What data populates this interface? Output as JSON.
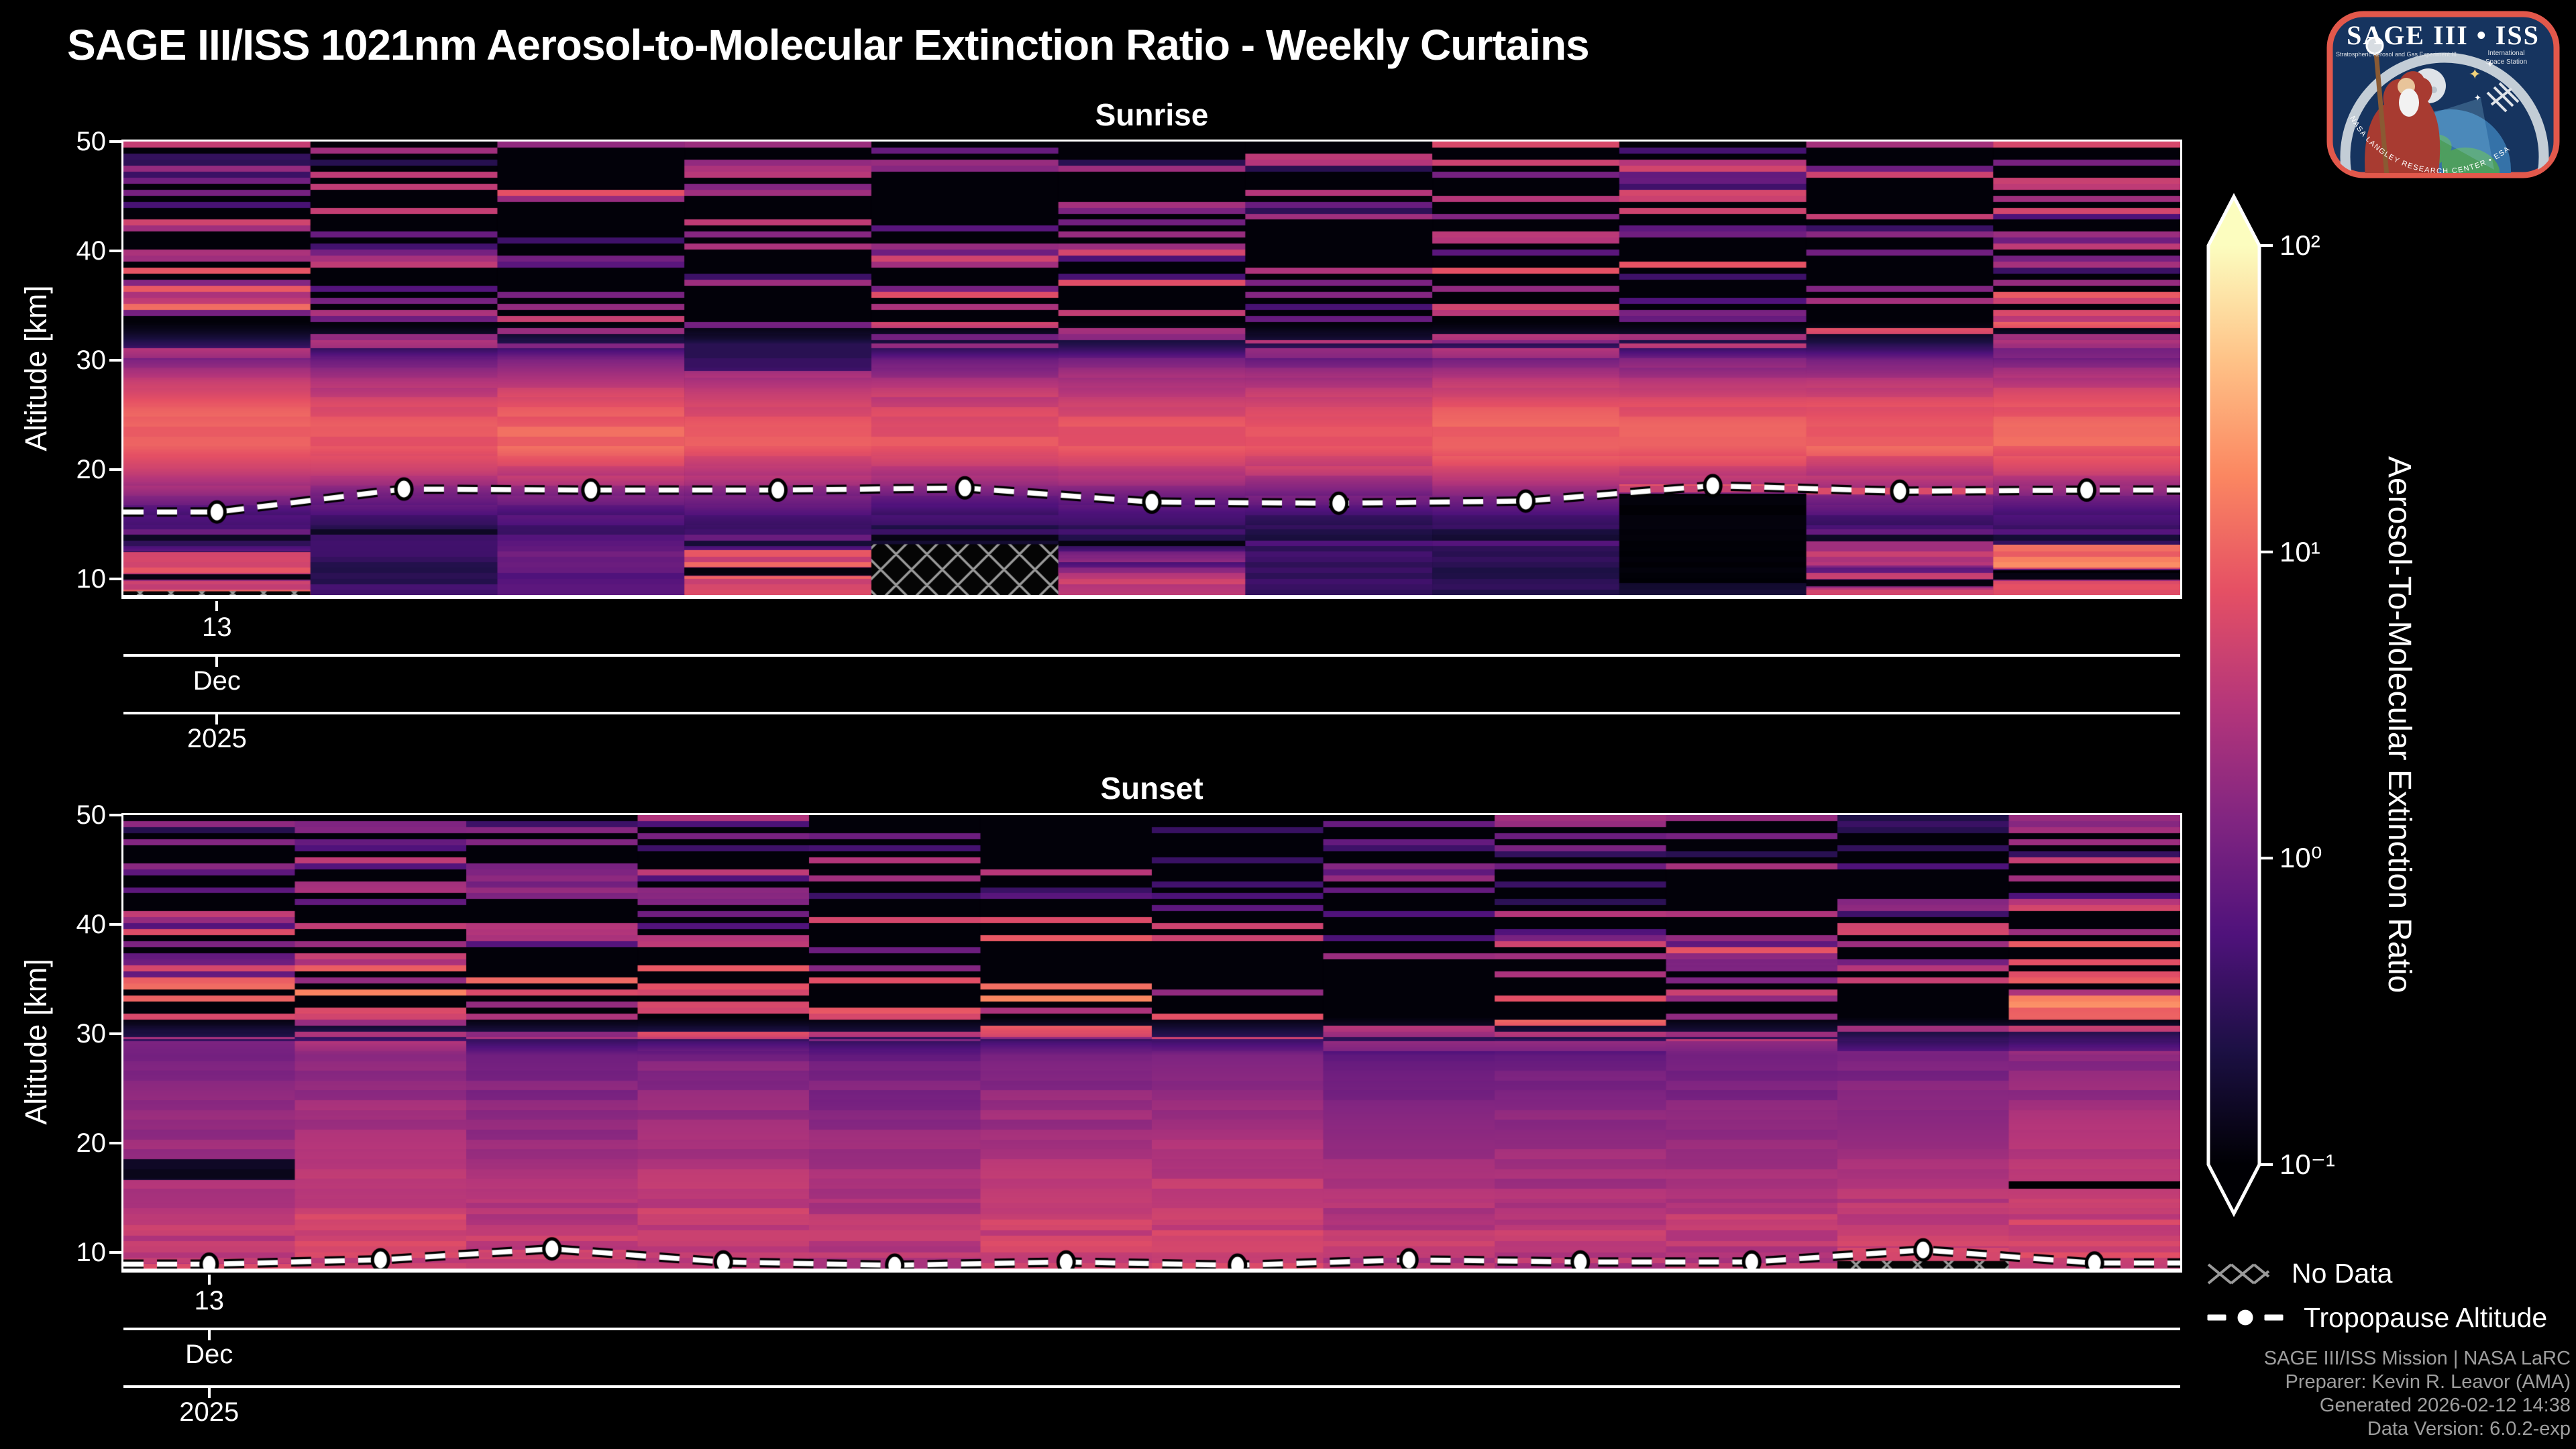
{
  "title": "SAGE III/ISS 1021nm Aerosol-to-Molecular Extinction Ratio - Weekly Curtains",
  "logo": {
    "title": "SAGE III • ISS",
    "experiment": "Stratospheric Aerosol and Gas Experiment III",
    "station_line1": "International",
    "station_line2": "Space Station",
    "border_text": "NASA LANGLEY RESEARCH CENTER • ESA"
  },
  "colorbar": {
    "label": "Aerosol-To-Molecular Extinction Ratio",
    "ticks": [
      "10²",
      "10¹",
      "10⁰",
      "10⁻¹"
    ],
    "tick_values": [
      100,
      10,
      1,
      0.1
    ],
    "scale": "log",
    "colormap": "magma"
  },
  "legend": [
    {
      "icon": "no-data-hatch",
      "label": "No Data"
    },
    {
      "icon": "tropopause-line",
      "label": "Tropopause Altitude"
    }
  ],
  "attribution": [
    "SAGE III/ISS Mission | NASA LaRC",
    "Preparer: Kevin R. Leavor (AMA)",
    "Generated 2026-02-12 14:38",
    "Data Version: 6.0.2-exp"
  ],
  "colors": {
    "background": "#000000",
    "text": "#ffffff",
    "attribution_text": "#9e9e9e",
    "hatch": "#9a9a9a",
    "tropopause_line": "#ffffff",
    "tropopause_outline": "#000000",
    "logo_border": "#e2584b",
    "logo_fill": "#16345f"
  },
  "chart_data": [
    {
      "type": "heatmap",
      "event": "sunrise",
      "title": "Sunrise",
      "ylabel": "Altitude [km]",
      "yticks": [
        50,
        40,
        30,
        20,
        10
      ],
      "ylim": [
        8.5,
        50
      ],
      "xtick": {
        "day": "13",
        "month": "Dec",
        "year": "2025"
      },
      "columns": 11,
      "scale": {
        "type": "log",
        "vmin": 0.1,
        "vmax": 100
      },
      "profile_log10": [
        [
          50,
          -0.9
        ],
        [
          42,
          -0.86
        ],
        [
          36,
          -0.72
        ],
        [
          33,
          -0.5
        ],
        [
          31,
          -0.12
        ],
        [
          29.5,
          0.18
        ],
        [
          28,
          0.48
        ],
        [
          26,
          0.78
        ],
        [
          24,
          0.93
        ],
        [
          22,
          0.95
        ],
        [
          20.5,
          0.72
        ],
        [
          19,
          0.42
        ],
        [
          17.5,
          0.05
        ],
        [
          16,
          -0.28
        ],
        [
          14.5,
          -0.45
        ],
        [
          13,
          -0.5
        ],
        [
          12,
          -0.15
        ],
        [
          11,
          0.2
        ],
        [
          10,
          0.35
        ],
        [
          9,
          0.45
        ],
        [
          8.5,
          0.5
        ]
      ],
      "features": [
        {
          "col": 1,
          "alt": [
            10.5,
            12.4
          ],
          "log10": 1.05,
          "noise": 0.8
        },
        {
          "col": 1,
          "alt": [
            9.9,
            10.4
          ],
          "log10": -0.95,
          "noise": 0.1
        },
        {
          "col": 1,
          "alt": [
            8.5,
            9.8
          ],
          "log10": 0.8,
          "noise": 0.5
        },
        {
          "col": 2,
          "alt": [
            8.5,
            13.5
          ],
          "log10": -0.45,
          "noise": 0.3
        },
        {
          "col": 3,
          "alt": [
            8.5,
            13.5
          ],
          "log10": -0.12,
          "noise": 0.3
        },
        {
          "col": 4,
          "alt": [
            29.0,
            31.5
          ],
          "log10": -0.45,
          "noise": 0.2
        },
        {
          "col": 4,
          "alt": [
            11.1,
            12.6
          ],
          "log10": 0.85,
          "noise": 0.5
        },
        {
          "col": 4,
          "alt": [
            10.3,
            11.0
          ],
          "log10": -0.95,
          "noise": 0.1
        },
        {
          "col": 4,
          "alt": [
            8.5,
            10.2
          ],
          "log10": 0.85,
          "noise": 0.5
        },
        {
          "col": 7,
          "alt": [
            8.5,
            13.0
          ],
          "log10": -0.4,
          "noise": 0.25
        },
        {
          "col": 8,
          "alt": [
            8.5,
            13.0
          ],
          "log10": -0.55,
          "noise": 0.25
        },
        {
          "col": 9,
          "alt": [
            17.9,
            18.6
          ],
          "log10": 0.8,
          "noise": 0.4
        },
        {
          "col": 9,
          "alt": [
            9.6,
            17.8
          ],
          "log10": -0.97,
          "noise": 0.05
        },
        {
          "col": 9,
          "alt": [
            8.5,
            9.6
          ],
          "log10": -0.7,
          "noise": 0.15
        },
        {
          "col": 10,
          "alt": [
            17.7,
            18.3
          ],
          "log10": 0.7,
          "noise": 0.3
        },
        {
          "col": 10,
          "alt": [
            11.2,
            13.4
          ],
          "log10": 0.55,
          "noise": 0.5
        },
        {
          "col": 10,
          "alt": [
            9.3,
            9.9
          ],
          "log10": -0.9,
          "noise": 0.1
        },
        {
          "col": 10,
          "alt": [
            8.5,
            9.2
          ],
          "log10": 0.65,
          "noise": 0.4
        },
        {
          "col": 11,
          "alt": [
            10.9,
            13.1
          ],
          "log10": 1.15,
          "noise": 0.7
        },
        {
          "col": 11,
          "alt": [
            9.9,
            10.8
          ],
          "log10": -0.95,
          "noise": 0.1
        },
        {
          "col": 11,
          "alt": [
            8.5,
            9.8
          ],
          "log10": 0.85,
          "noise": 0.4
        }
      ],
      "no_data": [
        {
          "col": 5,
          "alt": [
            8.5,
            13.15
          ]
        },
        {
          "col": 1,
          "alt": [
            8.5,
            8.85
          ]
        }
      ],
      "tropopause_km": [
        16.1,
        18.2,
        18.1,
        18.1,
        18.3,
        17.0,
        16.9,
        17.1,
        18.5,
        18.0,
        18.1
      ]
    },
    {
      "type": "heatmap",
      "event": "sunset",
      "title": "Sunset",
      "ylabel": "Altitude [km]",
      "yticks": [
        50,
        40,
        30,
        20,
        10
      ],
      "ylim": [
        8.5,
        50
      ],
      "xtick": {
        "day": "13",
        "month": "Dec",
        "year": "2025"
      },
      "columns": 12,
      "scale": {
        "type": "log",
        "vmin": 0.1,
        "vmax": 100
      },
      "profile_log10": [
        [
          50,
          -0.92
        ],
        [
          44,
          -0.85
        ],
        [
          40,
          -0.62
        ],
        [
          36,
          -0.38
        ],
        [
          32,
          -0.15
        ],
        [
          29,
          0.0
        ],
        [
          26,
          0.12
        ],
        [
          22,
          0.28
        ],
        [
          18,
          0.42
        ],
        [
          15,
          0.52
        ],
        [
          12,
          0.62
        ],
        [
          10,
          0.62
        ],
        [
          8.5,
          0.55
        ]
      ],
      "features": [
        {
          "col": 1,
          "alt": [
            16.6,
            18.5
          ],
          "log10": -0.8,
          "noise": 0.15
        },
        {
          "col": 1,
          "alt": [
            8.5,
            8.9
          ],
          "log10": 0.85,
          "noise": 0.3
        },
        {
          "col": 3,
          "alt": [
            9.4,
            10.2
          ],
          "log10": 0.85,
          "noise": 0.4
        },
        {
          "col": 11,
          "alt": [
            9.5,
            10.4
          ],
          "log10": 0.85,
          "noise": 0.4
        },
        {
          "col": 12,
          "alt": [
            15.8,
            16.5
          ],
          "log10": -1.0,
          "noise": 0.05
        }
      ],
      "no_data": [
        {
          "col": 11,
          "alt": [
            8.5,
            9.2
          ]
        }
      ],
      "tropopause_km": [
        8.9,
        9.3,
        10.3,
        9.1,
        8.8,
        9.1,
        8.8,
        9.3,
        9.1,
        9.1,
        10.2,
        9.0
      ]
    }
  ]
}
